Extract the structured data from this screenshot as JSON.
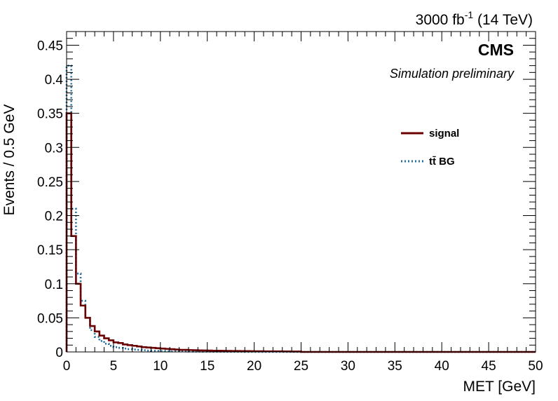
{
  "chart_data": {
    "type": "line",
    "xlabel": "MET [GeV]",
    "ylabel": "Events / 0.5 GeV",
    "xlim": [
      0,
      50
    ],
    "ylim": [
      0,
      0.47
    ],
    "bin_width": 0.5,
    "x_ticks": [
      0,
      5,
      10,
      15,
      20,
      25,
      30,
      35,
      40,
      45,
      50
    ],
    "x_tick_labels": [
      "0",
      "5",
      "10",
      "15",
      "20",
      "25",
      "30",
      "35",
      "40",
      "45",
      "50"
    ],
    "y_ticks": [
      0,
      0.05,
      0.1,
      0.15,
      0.2,
      0.25,
      0.3,
      0.35,
      0.4,
      0.45
    ],
    "y_tick_labels": [
      "0",
      "0.05",
      "0.1",
      "0.15",
      "0.2",
      "0.25",
      "0.3",
      "0.35",
      "0.4",
      "0.45"
    ],
    "lumi_label": {
      "main": "3000 fb",
      "sup": "-1",
      "tail": "(14 TeV)"
    },
    "experiment_label": "CMS",
    "status_label": "Simulation preliminary",
    "grid": false,
    "legend_position": "upper-right",
    "series": [
      {
        "name": "signal",
        "color": "#6b0000",
        "style": "solid",
        "values": [
          0.35,
          0.17,
          0.1,
          0.068,
          0.05,
          0.038,
          0.03,
          0.024,
          0.02,
          0.017,
          0.014,
          0.013,
          0.011,
          0.01,
          0.009,
          0.008,
          0.007,
          0.0065,
          0.006,
          0.0055,
          0.005,
          0.0045,
          0.004,
          0.0035,
          0.003,
          0.003,
          0.0027,
          0.0025,
          0.0023,
          0.0021,
          0.002,
          0.0018,
          0.0017,
          0.0016,
          0.0015,
          0.0014,
          0.0013,
          0.0012,
          0.0012,
          0.0011,
          0.001,
          0.001,
          0.0009,
          0.0009,
          0.0008,
          0.0008,
          0.0007,
          0.0007,
          0.0006,
          0.0006
        ]
      },
      {
        "name": "tt̄ BG",
        "color": "#1f6f9f",
        "style": "dotted",
        "values": [
          0.42,
          0.21,
          0.115,
          0.075,
          0.05,
          0.032,
          0.022,
          0.016,
          0.012,
          0.009,
          0.007,
          0.006,
          0.005,
          0.004,
          0.0035,
          0.003,
          0.0025,
          0.002,
          0.0018,
          0.0016,
          0.0014,
          0.0012,
          0.001,
          0.0009,
          0.0008,
          0.0007,
          0.0006,
          0.0005,
          0.0005,
          0.0004,
          0.0004,
          0.0003,
          0.0003,
          0.0003,
          0.0002,
          0.0002,
          0.0002,
          0.0002,
          0.0001,
          0.0001
        ]
      }
    ]
  }
}
